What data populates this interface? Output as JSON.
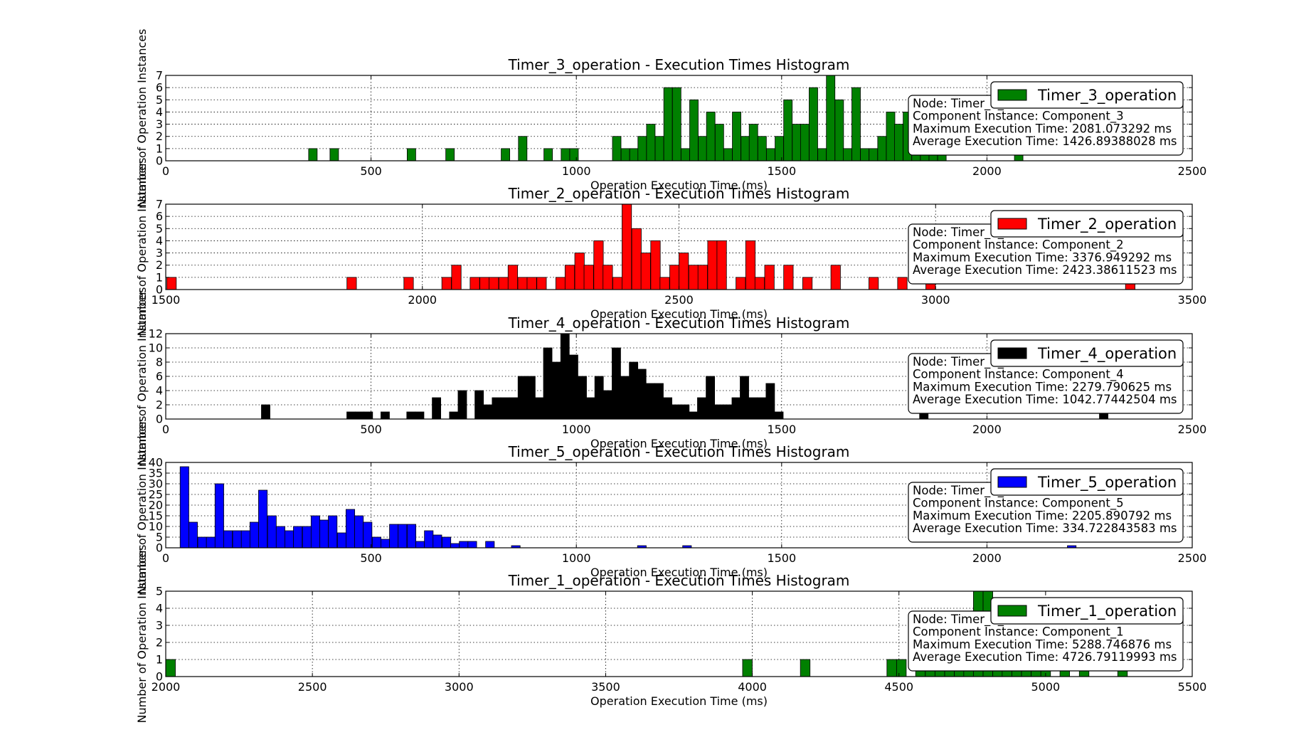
{
  "chart_data": [
    {
      "type": "bar",
      "title": "Timer_3_operation - Execution Times Histogram",
      "xlabel": "Operation Execution Time (ms)",
      "ylabel": "Number of Operation Instances",
      "xlim": [
        0,
        2500
      ],
      "ylim": [
        0,
        7
      ],
      "xticks": [
        0,
        500,
        1000,
        1500,
        2000,
        2500
      ],
      "yticks": [
        0,
        1,
        2,
        3,
        4,
        5,
        6,
        7
      ],
      "grid": true,
      "legend": "top-right",
      "color": "#008000",
      "series": [
        {
          "name": "Timer_3_operation"
        }
      ],
      "info_lines": [
        "Node: Timer_1_Node",
        "Component Instance: Component_3",
        "Maximum Execution Time: 2081.073292 ms",
        "Average Execution Time: 1426.89388028 ms"
      ],
      "bin_width": 20.8,
      "bins": [
        [
          348,
          1
        ],
        [
          400,
          1
        ],
        [
          588,
          1
        ],
        [
          682,
          1
        ],
        [
          817,
          1
        ],
        [
          859,
          2
        ],
        [
          921,
          1
        ],
        [
          963,
          1
        ],
        [
          984,
          1
        ],
        [
          1088,
          2
        ],
        [
          1109,
          1
        ],
        [
          1130,
          1
        ],
        [
          1150,
          2
        ],
        [
          1171,
          3
        ],
        [
          1192,
          2
        ],
        [
          1213,
          6
        ],
        [
          1234,
          6
        ],
        [
          1255,
          1
        ],
        [
          1276,
          5
        ],
        [
          1297,
          2
        ],
        [
          1317,
          4
        ],
        [
          1338,
          3
        ],
        [
          1359,
          1
        ],
        [
          1380,
          4
        ],
        [
          1401,
          2
        ],
        [
          1421,
          3
        ],
        [
          1442,
          2
        ],
        [
          1463,
          1
        ],
        [
          1484,
          2
        ],
        [
          1505,
          5
        ],
        [
          1526,
          3
        ],
        [
          1546,
          3
        ],
        [
          1567,
          6
        ],
        [
          1588,
          1
        ],
        [
          1609,
          7
        ],
        [
          1630,
          5
        ],
        [
          1650,
          1
        ],
        [
          1671,
          6
        ],
        [
          1692,
          1
        ],
        [
          1713,
          1
        ],
        [
          1734,
          2
        ],
        [
          1755,
          4
        ],
        [
          1775,
          3
        ],
        [
          1796,
          4
        ],
        [
          1817,
          3
        ],
        [
          1838,
          2
        ],
        [
          1859,
          1
        ],
        [
          1880,
          1
        ],
        [
          2067,
          1
        ]
      ]
    },
    {
      "type": "bar",
      "title": "Timer_2_operation - Execution Times Histogram",
      "xlabel": "Operation Execution Time (ms)",
      "ylabel": "Number of Operation Instances",
      "xlim": [
        1500,
        3500
      ],
      "ylim": [
        0,
        7
      ],
      "xticks": [
        1500,
        2000,
        2500,
        3000,
        3500
      ],
      "yticks": [
        0,
        1,
        2,
        3,
        4,
        5,
        6,
        7
      ],
      "grid": true,
      "legend": "top-right",
      "color": "#ff0000",
      "series": [
        {
          "name": "Timer_2_operation"
        }
      ],
      "info_lines": [
        "Node: Timer_1_Node",
        "Component Instance: Component_2",
        "Maximum Execution Time: 3376.949292 ms",
        "Average Execution Time: 2423.38611523 ms"
      ],
      "bin_width": 18.5,
      "bins": [
        [
          1502,
          1
        ],
        [
          1853,
          1
        ],
        [
          1964,
          1
        ],
        [
          2038,
          1
        ],
        [
          2057,
          2
        ],
        [
          2093,
          1
        ],
        [
          2112,
          1
        ],
        [
          2130,
          1
        ],
        [
          2149,
          1
        ],
        [
          2167,
          2
        ],
        [
          2186,
          1
        ],
        [
          2204,
          1
        ],
        [
          2223,
          1
        ],
        [
          2260,
          1
        ],
        [
          2278,
          2
        ],
        [
          2297,
          3
        ],
        [
          2315,
          2
        ],
        [
          2334,
          4
        ],
        [
          2352,
          2
        ],
        [
          2371,
          1
        ],
        [
          2389,
          7
        ],
        [
          2408,
          5
        ],
        [
          2426,
          3
        ],
        [
          2445,
          4
        ],
        [
          2463,
          1
        ],
        [
          2482,
          2
        ],
        [
          2500,
          3
        ],
        [
          2519,
          2
        ],
        [
          2537,
          2
        ],
        [
          2556,
          4
        ],
        [
          2574,
          4
        ],
        [
          2611,
          1
        ],
        [
          2630,
          4
        ],
        [
          2648,
          1
        ],
        [
          2667,
          2
        ],
        [
          2704,
          2
        ],
        [
          2741,
          1
        ],
        [
          2796,
          2
        ],
        [
          2870,
          1
        ],
        [
          2926,
          1
        ],
        [
          2981,
          1
        ],
        [
          3370,
          1
        ]
      ]
    },
    {
      "type": "bar",
      "title": "Timer_4_operation - Execution Times Histogram",
      "xlabel": "Operation Execution Time (ms)",
      "ylabel": "Number of Operation Instances",
      "xlim": [
        0,
        2500
      ],
      "ylim": [
        0,
        12
      ],
      "xticks": [
        0,
        500,
        1000,
        1500,
        2000,
        2500
      ],
      "yticks": [
        0,
        2,
        4,
        6,
        8,
        10,
        12
      ],
      "grid": true,
      "legend": "top-right",
      "color": "#000000",
      "series": [
        {
          "name": "Timer_4_operation"
        }
      ],
      "info_lines": [
        "Node: Timer_1_Node",
        "Component Instance: Component_4",
        "Maximum Execution Time: 2279.790625 ms",
        "Average Execution Time: 1042.77442504 ms"
      ],
      "bin_width": 20.8,
      "bins": [
        [
          233,
          2
        ],
        [
          441,
          1
        ],
        [
          462,
          1
        ],
        [
          483,
          1
        ],
        [
          524,
          1
        ],
        [
          587,
          1
        ],
        [
          608,
          1
        ],
        [
          649,
          3
        ],
        [
          691,
          1
        ],
        [
          712,
          4
        ],
        [
          753,
          4
        ],
        [
          774,
          2
        ],
        [
          795,
          3
        ],
        [
          816,
          3
        ],
        [
          837,
          3
        ],
        [
          858,
          6
        ],
        [
          879,
          6
        ],
        [
          899,
          3
        ],
        [
          920,
          10
        ],
        [
          941,
          8
        ],
        [
          962,
          12
        ],
        [
          983,
          9
        ],
        [
          1004,
          6
        ],
        [
          1024,
          3
        ],
        [
          1045,
          6
        ],
        [
          1066,
          4
        ],
        [
          1087,
          10
        ],
        [
          1108,
          6
        ],
        [
          1129,
          8
        ],
        [
          1149,
          7
        ],
        [
          1170,
          5
        ],
        [
          1191,
          5
        ],
        [
          1212,
          3
        ],
        [
          1233,
          2
        ],
        [
          1254,
          2
        ],
        [
          1274,
          1
        ],
        [
          1295,
          3
        ],
        [
          1316,
          6
        ],
        [
          1337,
          2
        ],
        [
          1358,
          2
        ],
        [
          1379,
          3
        ],
        [
          1399,
          6
        ],
        [
          1420,
          3
        ],
        [
          1441,
          3
        ],
        [
          1462,
          5
        ],
        [
          1483,
          1
        ],
        [
          1836,
          1
        ],
        [
          2274,
          1
        ]
      ]
    },
    {
      "type": "bar",
      "title": "Timer_5_operation - Execution Times Histogram",
      "xlabel": "Operation Execution Time (ms)",
      "ylabel": "Number of Operation Instances",
      "xlim": [
        0,
        2500
      ],
      "ylim": [
        0,
        40
      ],
      "xticks": [
        0,
        500,
        1000,
        1500,
        2000,
        2500
      ],
      "yticks": [
        0,
        5,
        10,
        15,
        20,
        25,
        30,
        35,
        40
      ],
      "grid": true,
      "legend": "top-right",
      "color": "#0000ff",
      "series": [
        {
          "name": "Timer_5_operation"
        }
      ],
      "info_lines": [
        "Node: Timer_1_Node",
        "Component Instance: Component_5",
        "Maximum Execution Time: 2205.890792 ms",
        "Average Execution Time: 334.722843583 ms"
      ],
      "bin_width": 21.2,
      "bins": [
        [
          35,
          38
        ],
        [
          56,
          12
        ],
        [
          78,
          5
        ],
        [
          99,
          5
        ],
        [
          120,
          30
        ],
        [
          141,
          8
        ],
        [
          163,
          8
        ],
        [
          184,
          8
        ],
        [
          205,
          12
        ],
        [
          226,
          27
        ],
        [
          248,
          15
        ],
        [
          269,
          10
        ],
        [
          290,
          8
        ],
        [
          311,
          10
        ],
        [
          333,
          10
        ],
        [
          354,
          15
        ],
        [
          375,
          13
        ],
        [
          396,
          15
        ],
        [
          418,
          7
        ],
        [
          439,
          18
        ],
        [
          460,
          15
        ],
        [
          481,
          12
        ],
        [
          503,
          5
        ],
        [
          524,
          4
        ],
        [
          545,
          11
        ],
        [
          566,
          11
        ],
        [
          588,
          11
        ],
        [
          609,
          3
        ],
        [
          630,
          8
        ],
        [
          651,
          6
        ],
        [
          673,
          5
        ],
        [
          694,
          2
        ],
        [
          715,
          3
        ],
        [
          736,
          3
        ],
        [
          779,
          3
        ],
        [
          842,
          1
        ],
        [
          1149,
          1
        ],
        [
          1259,
          1
        ],
        [
          2196,
          1
        ]
      ]
    },
    {
      "type": "bar",
      "title": "Timer_1_operation - Execution Times Histogram",
      "xlabel": "Operation Execution Time (ms)",
      "ylabel": "Number of Operation Instances",
      "xlim": [
        2000,
        5500
      ],
      "ylim": [
        0,
        5
      ],
      "xticks": [
        2000,
        2500,
        3000,
        3500,
        4000,
        4500,
        5000,
        5500
      ],
      "yticks": [
        0,
        1,
        2,
        3,
        4,
        5
      ],
      "grid": true,
      "legend": "top-right",
      "color": "#008000",
      "series": [
        {
          "name": "Timer_1_operation"
        }
      ],
      "info_lines": [
        "Node: Timer_1_Node",
        "Component Instance: Component_1",
        "Maximum Execution Time: 5288.746876 ms",
        "Average Execution Time: 4726.79119993 ms"
      ],
      "bin_width": 32.8,
      "bins": [
        [
          2000,
          1
        ],
        [
          3967,
          1
        ],
        [
          4164,
          1
        ],
        [
          4459,
          1
        ],
        [
          4492,
          1
        ],
        [
          4557,
          1
        ],
        [
          4590,
          1
        ],
        [
          4623,
          1
        ],
        [
          4656,
          1
        ],
        [
          4689,
          1
        ],
        [
          4721,
          1
        ],
        [
          4754,
          5
        ],
        [
          4787,
          5
        ],
        [
          4820,
          1
        ],
        [
          4852,
          1
        ],
        [
          4885,
          1
        ],
        [
          4918,
          1
        ],
        [
          4951,
          1
        ],
        [
          4984,
          1
        ],
        [
          5049,
          1
        ],
        [
          5115,
          1
        ],
        [
          5246,
          1
        ]
      ]
    }
  ]
}
